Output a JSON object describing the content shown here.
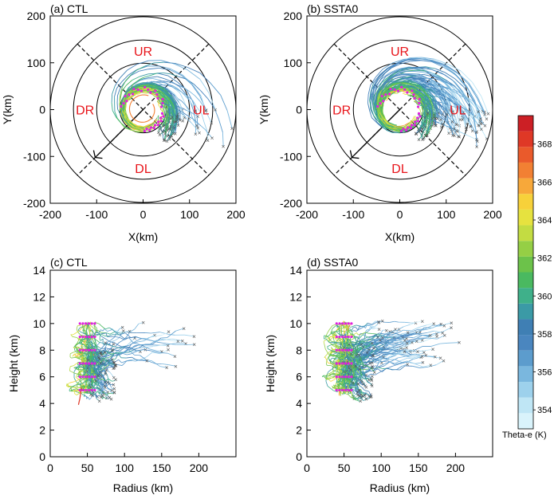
{
  "chart_data": [
    {
      "type": "scatter",
      "panel_label": "(a) CTL",
      "xlabel": "X(km)",
      "ylabel": "Y(km)",
      "xlim": [
        -200,
        200
      ],
      "ylim": [
        -200,
        200
      ],
      "xticks": [
        -200,
        -100,
        0,
        100,
        200
      ],
      "yticks": [
        -200,
        -100,
        0,
        100,
        200
      ],
      "range_rings_km": [
        50,
        100,
        150,
        200
      ],
      "quadrant_labels": [
        "UR",
        "UL",
        "DL",
        "DR"
      ],
      "start_ring_km": 40,
      "trajectory_count": 70,
      "trajectory_end_radius_km": [
        55,
        200
      ],
      "theta_e_range_K": [
        353,
        369
      ]
    },
    {
      "type": "scatter",
      "panel_label": "(b) SSTA0",
      "xlabel": "X(km)",
      "ylabel": "Y(km)",
      "xlim": [
        -200,
        200
      ],
      "ylim": [
        -200,
        200
      ],
      "xticks": [
        -200,
        -100,
        0,
        100,
        200
      ],
      "yticks": [
        -200,
        -100,
        0,
        100,
        200
      ],
      "range_rings_km": [
        50,
        100,
        150,
        200
      ],
      "quadrant_labels": [
        "UR",
        "UL",
        "DL",
        "DR"
      ],
      "start_ring_km": 40,
      "trajectory_count": 110,
      "trajectory_end_radius_km": [
        55,
        205
      ],
      "theta_e_range_K": [
        353,
        368
      ]
    },
    {
      "type": "line",
      "panel_label": "(c) CTL",
      "xlabel": "Radius (km)",
      "ylabel": "Height (km)",
      "xlim": [
        0,
        250
      ],
      "ylim": [
        0,
        14
      ],
      "xticks": [
        0,
        50,
        100,
        150,
        200
      ],
      "yticks": [
        0,
        2,
        4,
        6,
        8,
        10,
        12,
        14
      ],
      "start_radius_km": [
        40,
        60
      ],
      "start_heights_km": [
        5,
        6,
        7,
        8,
        9,
        10
      ],
      "height_range_km": [
        3.9,
        10.6
      ],
      "max_radius_km": 205
    },
    {
      "type": "line",
      "panel_label": "(d) SSTA0",
      "xlabel": "Radius (km)",
      "ylabel": "Height (km)",
      "xlim": [
        0,
        250
      ],
      "ylim": [
        0,
        14
      ],
      "xticks": [
        0,
        50,
        100,
        150,
        200
      ],
      "yticks": [
        0,
        2,
        4,
        6,
        8,
        10,
        12,
        14
      ],
      "start_radius_km": [
        40,
        60
      ],
      "start_heights_km": [
        5,
        6,
        7,
        8,
        9,
        10
      ],
      "height_range_km": [
        4.0,
        11.4
      ],
      "max_radius_km": 205
    }
  ],
  "colorbar": {
    "label": "Theta-e (K)",
    "min": 353,
    "max": 369.5,
    "ticks": [
      354,
      356,
      358,
      360,
      362,
      364,
      366,
      368
    ],
    "colors": [
      "#d9f3fb",
      "#bfe6f5",
      "#9dd1ec",
      "#7ab7de",
      "#5c9ccd",
      "#4a86bf",
      "#3f7fb4",
      "#3b9aa6",
      "#3fb08a",
      "#4ab960",
      "#6cc24a",
      "#95cf45",
      "#c3dc42",
      "#e6e23f",
      "#f7d13a",
      "#f7a83a",
      "#f28033",
      "#ea5a2b",
      "#df3826",
      "#cc1f25"
    ]
  }
}
